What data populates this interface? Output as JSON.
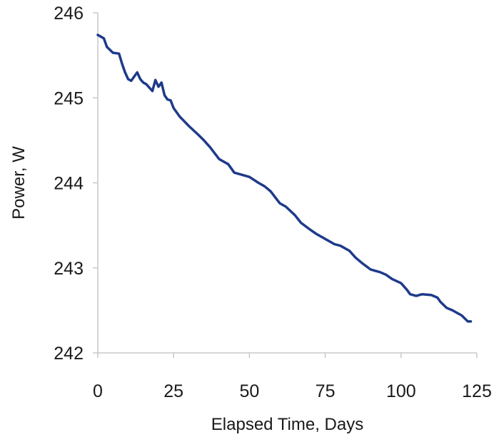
{
  "chart_data": {
    "type": "line",
    "xlabel": "Elapsed Time, Days",
    "ylabel": "Power, W",
    "xlim": [
      0,
      125
    ],
    "ylim": [
      242,
      246
    ],
    "xticks": [
      0,
      25,
      50,
      75,
      100,
      125
    ],
    "yticks": [
      242,
      243,
      244,
      245,
      246
    ],
    "grid": false,
    "series": [
      {
        "color": "#1f3a8a",
        "x": [
          0,
          2,
          3,
          5,
          7,
          8,
          9,
          10,
          11,
          12,
          13,
          14,
          15,
          16,
          17,
          18,
          19,
          20,
          21,
          22,
          23,
          24,
          25,
          27,
          30,
          33,
          35,
          37,
          40,
          43,
          45,
          47,
          50,
          53,
          55,
          57,
          60,
          62,
          65,
          67,
          70,
          72,
          75,
          78,
          80,
          83,
          85,
          87,
          90,
          93,
          95,
          97,
          100,
          102,
          103,
          105,
          107,
          110,
          112,
          113,
          115,
          117,
          120,
          122,
          123
        ],
        "values": [
          245.74,
          245.7,
          245.6,
          245.53,
          245.52,
          245.4,
          245.3,
          245.22,
          245.2,
          245.25,
          245.3,
          245.22,
          245.18,
          245.16,
          245.12,
          245.08,
          245.21,
          245.13,
          245.18,
          245.03,
          244.98,
          244.97,
          244.88,
          244.78,
          244.67,
          244.57,
          244.5,
          244.42,
          244.28,
          244.22,
          244.12,
          244.1,
          244.07,
          244.0,
          243.96,
          243.9,
          243.76,
          243.72,
          243.62,
          243.53,
          243.45,
          243.4,
          243.34,
          243.28,
          243.26,
          243.2,
          243.12,
          243.06,
          242.98,
          242.95,
          242.92,
          242.87,
          242.82,
          242.74,
          242.69,
          242.67,
          242.69,
          242.68,
          242.65,
          242.6,
          242.53,
          242.5,
          242.44,
          242.37,
          242.37
        ]
      }
    ]
  }
}
